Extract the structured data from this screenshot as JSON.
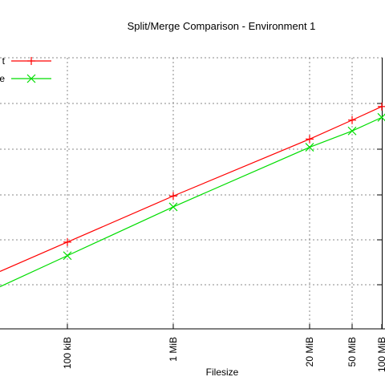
{
  "chart_data": {
    "type": "line",
    "title": "Split/Merge Comparison - Environment 1",
    "xlabel": "Filesize",
    "ylabel": "",
    "x_scale": "log",
    "grid": true,
    "legend_placement": "top-left",
    "x": [
      "100 kiB",
      "1 MiB",
      "20 MiB",
      "50 MiB",
      "100 MiB"
    ],
    "x_values_bytes": [
      102400,
      1048576,
      20971520,
      52428800,
      104857600
    ],
    "series": [
      {
        "name": "t",
        "color": "#ff0000",
        "marker": "plus",
        "y_fraction_of_plot_height": [
          0.32,
          0.49,
          0.7,
          0.77,
          0.82
        ]
      },
      {
        "name": "e",
        "color": "#00dd00",
        "marker": "x",
        "y_fraction_of_plot_height": [
          0.27,
          0.45,
          0.67,
          0.73,
          0.78
        ]
      }
    ]
  }
}
